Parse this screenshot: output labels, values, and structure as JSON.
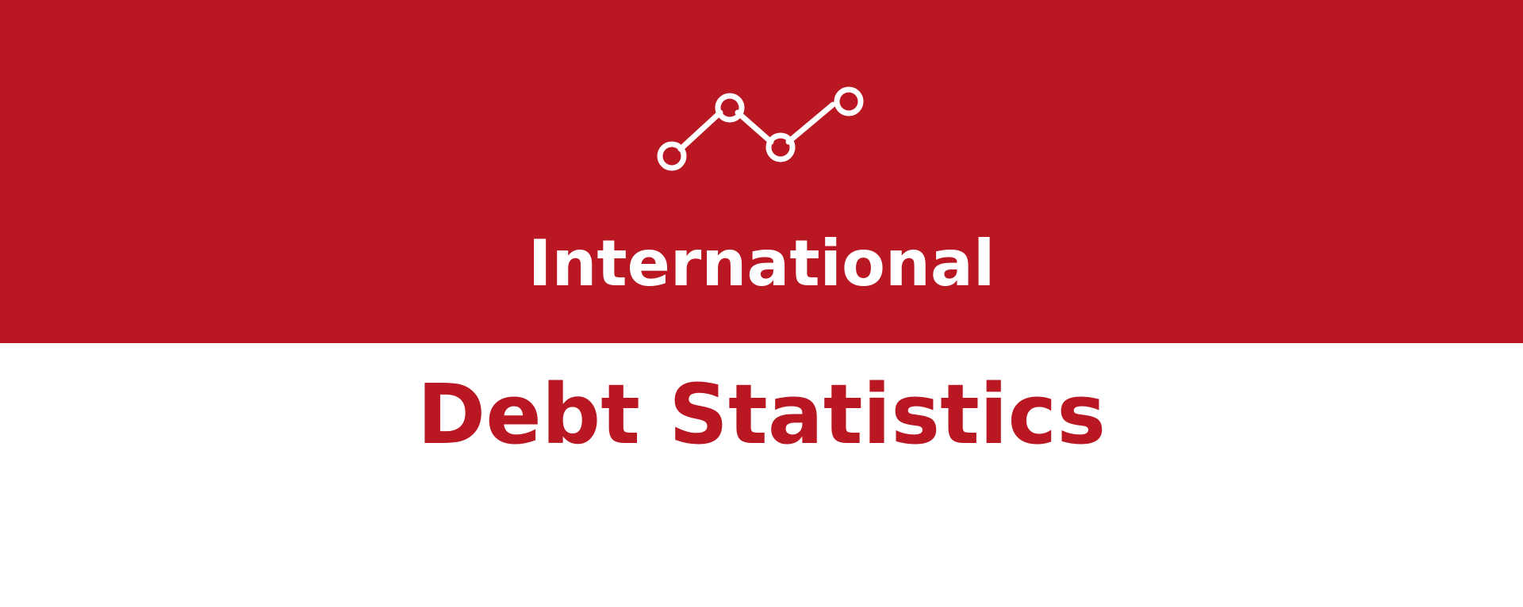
{
  "banner": {
    "icon": "line-chart-icon",
    "title_line_1": "International"
  },
  "title_line_2": "Debt Statistics",
  "colors": {
    "brand_red": "#b91822",
    "white": "#ffffff"
  }
}
